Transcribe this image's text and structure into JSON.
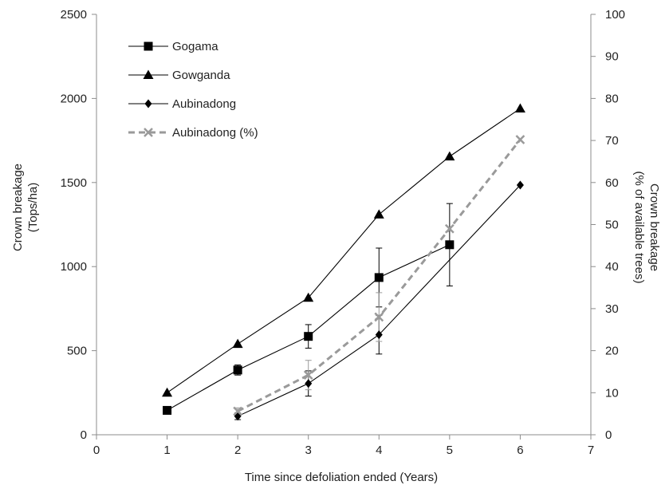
{
  "chart_data": {
    "type": "line",
    "title": "",
    "xlabel": "Time since defoliation ended (Years)",
    "ylabel_left": [
      "Crown breakage",
      "(Tops/ha)"
    ],
    "ylabel_right": [
      "Crown breakage",
      "(% of available trees)"
    ],
    "xlim": [
      0,
      7
    ],
    "x_ticks": [
      "0",
      "1",
      "2",
      "3",
      "4",
      "5",
      "6",
      "7"
    ],
    "ylim_left": [
      0,
      2500
    ],
    "y_ticks_left": [
      "0",
      "500",
      "1000",
      "1500",
      "2000",
      "2500"
    ],
    "ylim_right": [
      0,
      100
    ],
    "y_ticks_right": [
      "0",
      "10",
      "20",
      "30",
      "40",
      "50",
      "60",
      "70",
      "80",
      "90",
      "100"
    ],
    "grid": false,
    "legend_position": "top-left",
    "series": [
      {
        "name": "Gogama",
        "axis": "left",
        "marker": "square",
        "color": "#000000",
        "dashed": false,
        "x": [
          1,
          2,
          3,
          4,
          5
        ],
        "y": [
          145,
          385,
          585,
          935,
          1130
        ],
        "err": [
          0,
          30,
          70,
          175,
          245
        ]
      },
      {
        "name": "Gowganda",
        "axis": "left",
        "marker": "triangle",
        "color": "#000000",
        "dashed": false,
        "x": [
          1,
          2,
          3,
          4,
          5,
          6
        ],
        "y": [
          250,
          540,
          815,
          1310,
          1655,
          1940
        ],
        "err": [
          0,
          0,
          0,
          0,
          0,
          0
        ]
      },
      {
        "name": "Aubinadong",
        "axis": "left",
        "marker": "diamond",
        "color": "#000000",
        "dashed": false,
        "x": [
          2,
          3,
          4,
          6
        ],
        "y": [
          110,
          305,
          595,
          1485
        ],
        "err": [
          20,
          75,
          115,
          0
        ]
      },
      {
        "name": "Aubinadong (%)",
        "axis": "right",
        "marker": "x",
        "color": "#9a9a9a",
        "dashed": true,
        "x": [
          2,
          3,
          4,
          5,
          6
        ],
        "y": [
          5.6,
          14.2,
          28,
          49,
          70.2
        ],
        "err": [
          0.8,
          3.5,
          5.8,
          0,
          0
        ]
      }
    ]
  }
}
